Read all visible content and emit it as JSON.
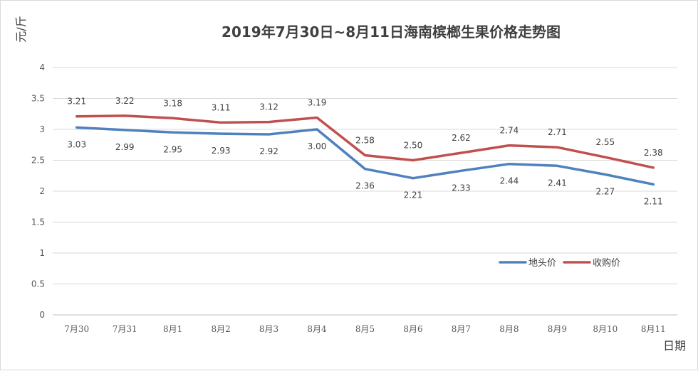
{
  "chart_data": {
    "type": "line",
    "title": "2019年7月30日~8月11日海南槟榔生果价格走势图",
    "ylabel": "元/斤",
    "xlabel": "日期",
    "ylim": [
      0,
      4
    ],
    "yticks": [
      "0",
      "0.5",
      "1",
      "1.5",
      "2",
      "2.5",
      "3",
      "3.5",
      "4"
    ],
    "categories": [
      "7月30",
      "7月31",
      "8月1",
      "8月2",
      "8月3",
      "8月4",
      "8月5",
      "8月6",
      "8月7",
      "8月8",
      "8月9",
      "8月10",
      "8月11"
    ],
    "series": [
      {
        "name": "地头价",
        "color": "#4f81bd",
        "values": [
          3.03,
          2.99,
          2.95,
          2.93,
          2.92,
          3.0,
          2.36,
          2.21,
          2.33,
          2.44,
          2.41,
          2.27,
          2.11
        ],
        "labels": [
          "3.03",
          "2.99",
          "2.95",
          "2.93",
          "2.92",
          "3.00",
          "2.36",
          "2.21",
          "2.33",
          "2.44",
          "2.41",
          "2.27",
          "2.11"
        ],
        "label_position": "below"
      },
      {
        "name": "收购价",
        "color": "#c0504d",
        "values": [
          3.21,
          3.22,
          3.18,
          3.11,
          3.12,
          3.19,
          2.58,
          2.5,
          2.62,
          2.74,
          2.71,
          2.55,
          2.38
        ],
        "labels": [
          "3.21",
          "3.22",
          "3.18",
          "3.11",
          "3.12",
          "3.19",
          "2.58",
          "2.50",
          "2.62",
          "2.74",
          "2.71",
          "2.55",
          "2.38"
        ],
        "label_position": "above"
      }
    ],
    "grid": true,
    "legend_position": "right"
  }
}
